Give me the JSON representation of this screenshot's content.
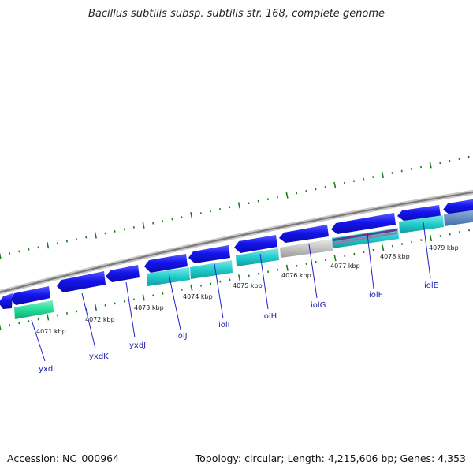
{
  "header": {
    "title": "Bacillus subtilis subsp. subtilis str. 168, complete genome"
  },
  "footer": {
    "accession": "Accession: NC_000964",
    "summary": "Topology: circular; Length: 4,215,606 bp; Genes: 4,353"
  },
  "scale_labels": [
    "4071 kbp",
    "4072 kbp",
    "4073 kbp",
    "4074 kbp",
    "4075 kbp",
    "4076 kbp",
    "4077 kbp",
    "4078 kbp",
    "4079 kbp"
  ],
  "gene_labels": [
    "yxdL",
    "yxdK",
    "yxdJ",
    "iolJ",
    "iolI",
    "iolH",
    "iolG",
    "iolF",
    "iolE"
  ],
  "colors": {
    "gene_arrow": "#1212e8",
    "gene_arrow_dark": "#0b0b9c",
    "cds_cyan": "#22cccc",
    "cds_green": "#22dd99",
    "cds_gray": "#bfbfbf",
    "backbone": "#8a8a8a",
    "tick": "#1e7a1e",
    "label_line": "#2222cc"
  }
}
